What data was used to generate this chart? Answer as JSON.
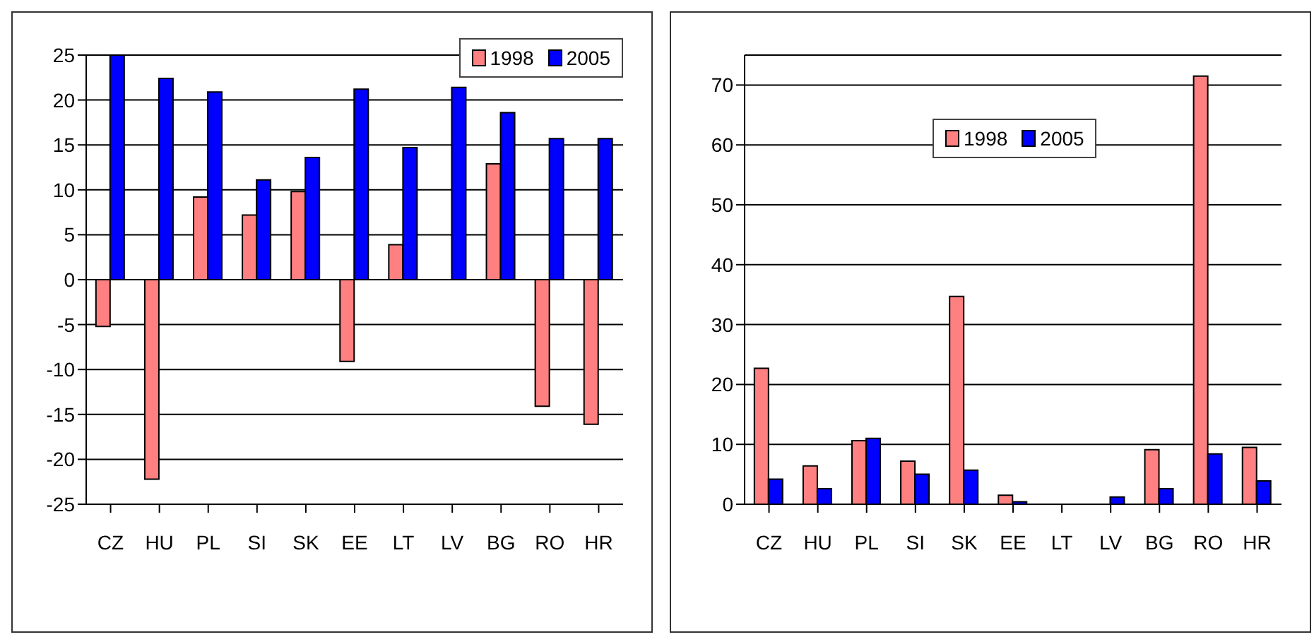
{
  "chart_data": [
    {
      "type": "bar",
      "categories": [
        "CZ",
        "HU",
        "PL",
        "SI",
        "SK",
        "EE",
        "LT",
        "LV",
        "BG",
        "RO",
        "HR"
      ],
      "series": [
        {
          "name": "1998",
          "color": "#ff8080",
          "values": [
            -5.2,
            -22.2,
            9.2,
            7.2,
            9.8,
            -9.1,
            3.9,
            null,
            12.9,
            -14.1,
            -16.1
          ]
        },
        {
          "name": "2005",
          "color": "#0000ff",
          "values": [
            25,
            22.4,
            20.9,
            11.1,
            13.6,
            21.2,
            14.7,
            21.4,
            18.6,
            15.7,
            15.7
          ]
        }
      ],
      "ylim": [
        -25,
        25
      ],
      "yticks": [
        -25,
        -20,
        -15,
        -10,
        -5,
        0,
        5,
        10,
        15,
        20,
        25
      ],
      "grid": "y",
      "legend": "top right"
    },
    {
      "type": "bar",
      "categories": [
        "CZ",
        "HU",
        "PL",
        "SI",
        "SK",
        "EE",
        "LT",
        "LV",
        "BG",
        "RO",
        "HR"
      ],
      "series": [
        {
          "name": "1998",
          "color": "#ff8080",
          "values": [
            22.7,
            6.4,
            10.6,
            7.2,
            34.7,
            1.5,
            null,
            null,
            9.1,
            71.5,
            9.5
          ]
        },
        {
          "name": "2005",
          "color": "#0000ff",
          "values": [
            4.2,
            2.6,
            11.0,
            5.0,
            5.7,
            0.4,
            null,
            1.2,
            2.6,
            8.4,
            3.9
          ]
        }
      ],
      "ylim": [
        0,
        75
      ],
      "yticks": [
        0,
        10,
        20,
        30,
        40,
        50,
        60,
        70
      ],
      "grid": "y",
      "legend": "top"
    }
  ]
}
